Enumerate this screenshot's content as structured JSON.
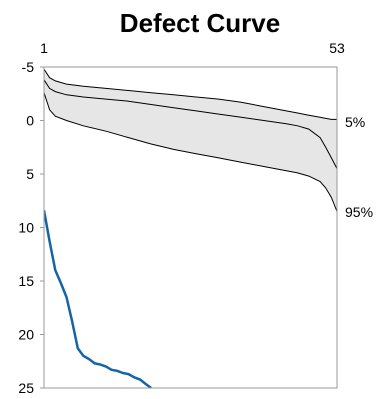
{
  "chart_data": {
    "type": "area",
    "title": "Defect Curve",
    "x_ticks": [
      "1",
      "53"
    ],
    "xlim": [
      1,
      53
    ],
    "ylim": [
      -5,
      25
    ],
    "y_inverted": true,
    "y_ticks": [
      -5,
      0,
      5,
      10,
      15,
      20,
      25
    ],
    "band_labels": [
      "5%",
      "95%"
    ],
    "colors": {
      "band_fill": "#e6e6e6",
      "band_edge": "#000000",
      "series": "#1565a6",
      "frame": "#999999"
    },
    "x": [
      1,
      2,
      3,
      5,
      8,
      12,
      16,
      20,
      24,
      28,
      32,
      36,
      40,
      44,
      46,
      48,
      50,
      51,
      52,
      53
    ],
    "band_upper": [
      -4.8,
      -4.0,
      -3.7,
      -3.4,
      -3.2,
      -3.0,
      -2.8,
      -2.6,
      -2.4,
      -2.2,
      -2.0,
      -1.7,
      -1.3,
      -0.9,
      -0.7,
      -0.5,
      -0.3,
      -0.2,
      -0.1,
      -0.1
    ],
    "band_median": [
      -3.8,
      -3.0,
      -2.7,
      -2.4,
      -2.2,
      -2.0,
      -1.8,
      -1.5,
      -1.2,
      -0.9,
      -0.6,
      -0.3,
      0.0,
      0.3,
      0.5,
      0.8,
      1.6,
      2.5,
      3.5,
      4.5
    ],
    "band_lower": [
      -2.6,
      -1.0,
      -0.4,
      0.0,
      0.5,
      1.0,
      1.6,
      2.2,
      2.7,
      3.1,
      3.5,
      3.9,
      4.3,
      4.7,
      4.9,
      5.2,
      5.7,
      6.3,
      7.2,
      8.5
    ],
    "series": [
      {
        "x": [
          1,
          2,
          3,
          4,
          5,
          6,
          7,
          8,
          9,
          10,
          11,
          12,
          13,
          14,
          15,
          16,
          17,
          18,
          19,
          20
        ],
        "values": [
          8.4,
          11.3,
          14.0,
          15.2,
          16.5,
          18.8,
          21.3,
          22.0,
          22.3,
          22.7,
          22.8,
          23.0,
          23.3,
          23.4,
          23.6,
          23.7,
          24.0,
          24.2,
          24.6,
          25.0
        ]
      }
    ]
  }
}
